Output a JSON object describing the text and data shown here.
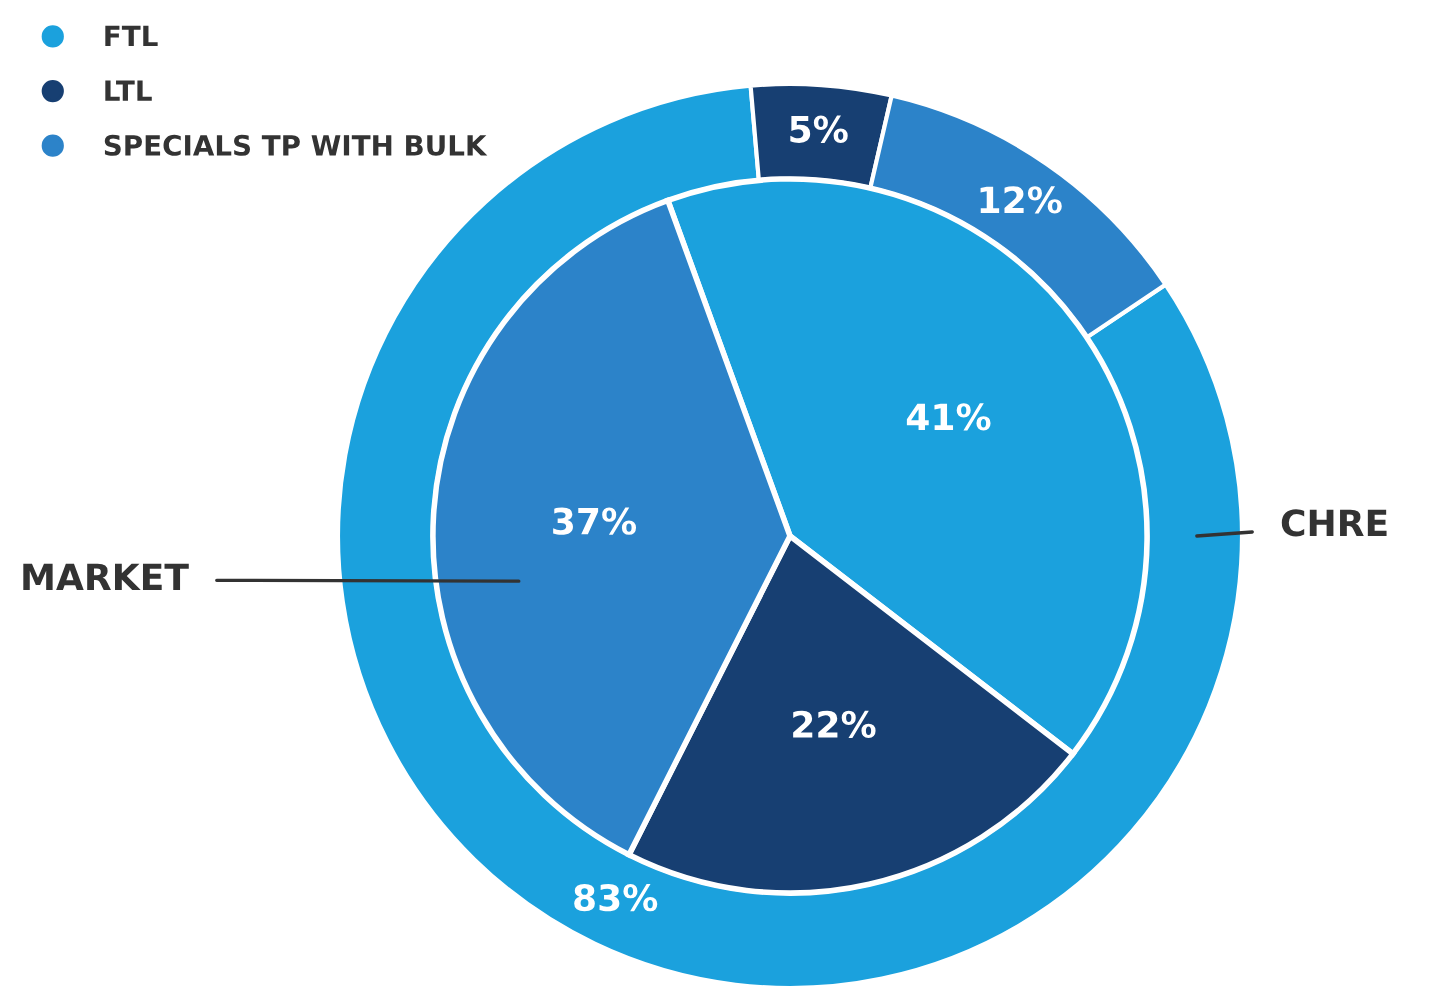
{
  "chart_data": {
    "type": "donut",
    "categories": [
      "FTL",
      "LTL",
      "SPECIALS TP WITH BULK"
    ],
    "legend": "top left",
    "series": [
      {
        "name": "CHRE",
        "values": [
          83,
          5,
          12
        ],
        "colors": [
          "#1ba1dd",
          "#173f72",
          "#2c83c9"
        ],
        "value_labels": [
          "83%",
          "5%",
          "12%"
        ]
      },
      {
        "name": "MARKET",
        "values": [
          41,
          22,
          37
        ],
        "colors": [
          "#1ba1dd",
          "#173f72",
          "#2c83c9"
        ],
        "value_labels": [
          "41%",
          "22%",
          "37%"
        ]
      }
    ]
  }
}
